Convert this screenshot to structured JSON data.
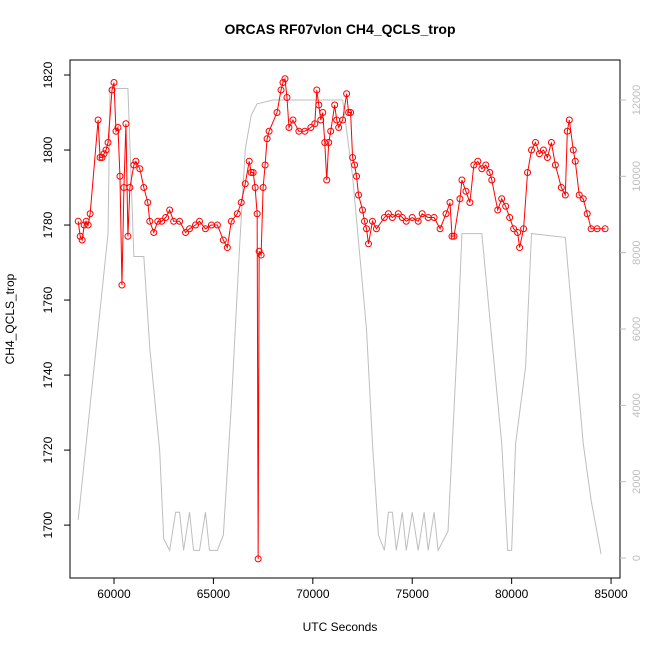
{
  "chart_data": {
    "type": "line",
    "title": "ORCAS RF07vlon CH4_QCLS_trop",
    "x_label": "UTC Seconds",
    "y_label": "CH4_QCLS_trop",
    "xlim": [
      57787,
      85450
    ],
    "xticks": [
      60000,
      65000,
      70000,
      75000,
      80000,
      85000
    ],
    "ylim": [
      1685.9,
      1824
    ],
    "yticks": [
      1700,
      1720,
      1740,
      1760,
      1780,
      1800,
      1820
    ],
    "y2lim": [
      -524,
      13048
    ],
    "y2ticks": [
      0,
      2000,
      4000,
      6000,
      8000,
      10000,
      12000
    ],
    "series": [
      {
        "color": "#ff0000",
        "markers": true,
        "x": [
          58200,
          58300,
          58400,
          58500,
          58600,
          58700,
          58800,
          59200,
          59300,
          59400,
          59500,
          59600,
          59700,
          59900,
          60000,
          60100,
          60200,
          60300,
          60400,
          60500,
          60600,
          60700,
          60800,
          61000,
          61100,
          61300,
          61500,
          61700,
          61800,
          62000,
          62200,
          62400,
          62600,
          62800,
          63000,
          63300,
          63600,
          63800,
          64100,
          64300,
          64600,
          64900,
          65200,
          65500,
          65700,
          65900,
          66200,
          66400,
          66600,
          66800,
          66900,
          67000,
          67100,
          67200,
          67250,
          67300,
          67400,
          67500,
          67600,
          67700,
          67800,
          68200,
          68400,
          68500,
          68600,
          68700,
          68800,
          69000,
          69300,
          69600,
          69900,
          70100,
          70200,
          70300,
          70400,
          70500,
          70600,
          70700,
          70800,
          70900,
          71100,
          71200,
          71300,
          71500,
          71700,
          71800,
          71900,
          72000,
          72100,
          72200,
          72300,
          72500,
          72600,
          72700,
          72800,
          73000,
          73200,
          73600,
          73800,
          74000,
          74300,
          74500,
          74700,
          75000,
          75300,
          75500,
          75800,
          76100,
          76400,
          76700,
          76900,
          77000,
          77100,
          77400,
          77500,
          77700,
          77900,
          78100,
          78300,
          78500,
          78700,
          78900,
          79000,
          79300,
          79500,
          79700,
          79900,
          80100,
          80300,
          80400,
          80600,
          80800,
          81000,
          81200,
          81400,
          81600,
          81800,
          82000,
          82200,
          82500,
          82700,
          82800,
          82900,
          83100,
          83200,
          83400,
          83600,
          83800,
          84000,
          84300,
          84700
        ],
        "values": [
          1781,
          1777,
          1776,
          1780,
          1781,
          1780,
          1783,
          1808,
          1798,
          1798,
          1799,
          1800,
          1802,
          1816,
          1818,
          1805,
          1806,
          1793,
          1764,
          1790,
          1807,
          1777,
          1790,
          1796,
          1797,
          1795,
          1790,
          1786,
          1781,
          1778,
          1781,
          1781,
          1782,
          1784,
          1781,
          1781,
          1778,
          1779,
          1780,
          1781,
          1779,
          1780,
          1780,
          1776,
          1774,
          1781,
          1783,
          1786,
          1791,
          1797,
          1794,
          1794,
          1790,
          1783,
          1691,
          1773,
          1772,
          1790,
          1796,
          1803,
          1805,
          1810,
          1816,
          1818,
          1819,
          1814,
          1806,
          1808,
          1805,
          1805,
          1806,
          1807,
          1816,
          1812,
          1808,
          1810,
          1802,
          1792,
          1802,
          1805,
          1812,
          1808,
          1806,
          1808,
          1815,
          1810,
          1810,
          1798,
          1796,
          1793,
          1788,
          1784,
          1781,
          1779,
          1775,
          1781,
          1779,
          1782,
          1783,
          1782,
          1783,
          1782,
          1781,
          1782,
          1781,
          1783,
          1782,
          1782,
          1779,
          1783,
          1786,
          1777,
          1777,
          1787,
          1792,
          1789,
          1786,
          1796,
          1797,
          1795,
          1796,
          1794,
          1792,
          1784,
          1787,
          1785,
          1782,
          1779,
          1778,
          1774,
          1779,
          1794,
          1800,
          1802,
          1799,
          1800,
          1798,
          1802,
          1796,
          1790,
          1788,
          1805,
          1808,
          1800,
          1797,
          1788,
          1787,
          1783,
          1779,
          1779,
          1779
        ]
      },
      {
        "color": "#bebebe",
        "markers": false,
        "axis": "y2",
        "x": [
          58200,
          59000,
          59700,
          59800,
          60700,
          61000,
          61500,
          61800,
          62300,
          62500,
          62800,
          63100,
          63300,
          63500,
          63800,
          64000,
          64300,
          64600,
          64800,
          65200,
          65500,
          65900,
          66300,
          66600,
          66900,
          67200,
          68000,
          71500,
          72000,
          72700,
          73000,
          73300,
          73600,
          73800,
          74000,
          74200,
          74500,
          74700,
          75000,
          75300,
          75600,
          75800,
          76100,
          76300,
          76800,
          77300,
          77500,
          78500,
          79500,
          79800,
          80000,
          80200,
          80700,
          81000,
          82700,
          83100,
          83600,
          84000,
          84500
        ],
        "values": [
          1000,
          5000,
          8500,
          12300,
          12300,
          7900,
          7900,
          5500,
          2800,
          500,
          200,
          1200,
          1200,
          200,
          1200,
          200,
          200,
          1200,
          200,
          200,
          600,
          4000,
          8000,
          10700,
          11600,
          11900,
          12000,
          12000,
          10000,
          6000,
          3000,
          600,
          200,
          1200,
          1200,
          200,
          1200,
          200,
          1200,
          200,
          1200,
          200,
          1200,
          200,
          700,
          6000,
          8500,
          8500,
          3000,
          200,
          200,
          3000,
          5000,
          8500,
          8400,
          6000,
          3000,
          1500,
          100
        ]
      }
    ]
  }
}
